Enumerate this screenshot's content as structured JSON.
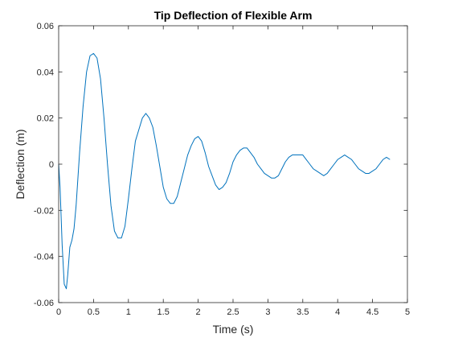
{
  "chart_data": {
    "type": "line",
    "title": "Tip Deflection of Flexible Arm",
    "xlabel": "Time (s)",
    "ylabel": "Deflection (m)",
    "xlim": [
      0,
      5
    ],
    "ylim": [
      -0.06,
      0.06
    ],
    "xticks": [
      0,
      0.5,
      1,
      1.5,
      2,
      2.5,
      3,
      3.5,
      4,
      4.5,
      5
    ],
    "xtick_labels": [
      "0",
      "0.5",
      "1",
      "1.5",
      "2",
      "2.5",
      "3",
      "3.5",
      "4",
      "4.5",
      "5"
    ],
    "yticks": [
      -0.06,
      -0.04,
      -0.02,
      0,
      0.02,
      0.04,
      0.06
    ],
    "ytick_labels": [
      "-0.06",
      "-0.04",
      "-0.02",
      "0",
      "0.02",
      "0.04",
      "0.06"
    ],
    "grid": false,
    "line_color": "#0072BD",
    "series": [
      {
        "x": [
          0,
          0.02,
          0.05,
          0.08,
          0.11,
          0.13,
          0.16,
          0.19,
          0.22,
          0.25,
          0.3,
          0.35,
          0.4,
          0.45,
          0.5,
          0.55,
          0.6,
          0.65,
          0.7,
          0.75,
          0.8,
          0.85,
          0.9,
          0.95,
          1.0,
          1.05,
          1.1,
          1.15,
          1.2,
          1.25,
          1.3,
          1.35,
          1.4,
          1.45,
          1.5,
          1.55,
          1.6,
          1.65,
          1.7,
          1.75,
          1.8,
          1.85,
          1.9,
          1.95,
          2.0,
          2.05,
          2.1,
          2.15,
          2.2,
          2.25,
          2.3,
          2.35,
          2.4,
          2.45,
          2.5,
          2.55,
          2.6,
          2.65,
          2.7,
          2.75,
          2.8,
          2.85,
          2.9,
          2.95,
          3.0,
          3.05,
          3.1,
          3.15,
          3.2,
          3.25,
          3.3,
          3.35,
          3.4,
          3.45,
          3.5,
          3.55,
          3.6,
          3.65,
          3.7,
          3.75,
          3.8,
          3.85,
          3.9,
          3.95,
          4.0,
          4.05,
          4.1,
          4.15,
          4.2,
          4.25,
          4.3,
          4.35,
          4.4,
          4.45,
          4.5,
          4.55,
          4.6,
          4.65,
          4.7,
          4.75
        ],
        "y": [
          0,
          -0.01,
          -0.035,
          -0.052,
          -0.054,
          -0.048,
          -0.036,
          -0.033,
          -0.028,
          -0.018,
          0.005,
          0.025,
          0.04,
          0.047,
          0.048,
          0.046,
          0.037,
          0.02,
          0.0,
          -0.018,
          -0.029,
          -0.032,
          -0.032,
          -0.027,
          -0.015,
          -0.002,
          0.01,
          0.015,
          0.02,
          0.022,
          0.02,
          0.016,
          0.008,
          -0.001,
          -0.01,
          -0.015,
          -0.017,
          -0.017,
          -0.014,
          -0.008,
          -0.002,
          0.004,
          0.008,
          0.011,
          0.012,
          0.01,
          0.005,
          -0.001,
          -0.005,
          -0.009,
          -0.011,
          -0.01,
          -0.008,
          -0.004,
          0.001,
          0.004,
          0.006,
          0.007,
          0.007,
          0.005,
          0.003,
          0.0,
          -0.002,
          -0.004,
          -0.005,
          -0.006,
          -0.006,
          -0.005,
          -0.002,
          0.001,
          0.003,
          0.004,
          0.004,
          0.004,
          0.004,
          0.002,
          0.0,
          -0.002,
          -0.003,
          -0.004,
          -0.005,
          -0.004,
          -0.002,
          0.0,
          0.002,
          0.003,
          0.004,
          0.003,
          0.002,
          0.0,
          -0.002,
          -0.003,
          -0.004,
          -0.004,
          -0.003,
          -0.002,
          0.0,
          0.002,
          0.003,
          0.002
        ]
      }
    ]
  }
}
